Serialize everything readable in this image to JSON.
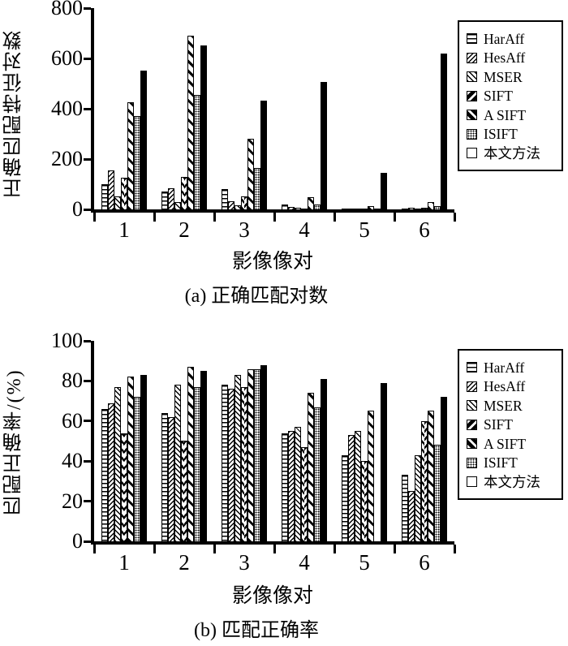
{
  "accent_color": "#000000",
  "background_color": "#ffffff",
  "chart_data": [
    {
      "type": "bar",
      "caption": "(a) 正确匹配对数",
      "ylabel": "正确匹配特征对数",
      "xlabel": "影像像对",
      "categories": [
        "1",
        "2",
        "3",
        "4",
        "5",
        "6"
      ],
      "ylim": [
        0,
        800
      ],
      "yticks": [
        0,
        200,
        400,
        600,
        800
      ],
      "grid": false,
      "legend_position": "right",
      "series": [
        {
          "name": "HarAff",
          "pattern": "horizontal-lines",
          "values": [
            100,
            70,
            80,
            20,
            4,
            4
          ]
        },
        {
          "name": "HesAff",
          "pattern": "dense-backslash",
          "values": [
            155,
            85,
            32,
            10,
            3,
            6
          ]
        },
        {
          "name": "MSER",
          "pattern": "slash",
          "values": [
            50,
            28,
            16,
            5,
            2,
            4
          ]
        },
        {
          "name": "SIFT",
          "pattern": "chevron",
          "values": [
            125,
            130,
            50,
            4,
            3,
            6
          ]
        },
        {
          "name": "A SIFT",
          "pattern": "bold-slash",
          "values": [
            425,
            690,
            280,
            48,
            12,
            30
          ]
        },
        {
          "name": "ISIFT",
          "pattern": "dots",
          "values": [
            372,
            455,
            165,
            18,
            3,
            12
          ]
        },
        {
          "name": "本文方法",
          "pattern": "solid-black",
          "values": [
            550,
            650,
            432,
            505,
            145,
            620
          ]
        }
      ]
    },
    {
      "type": "bar",
      "caption": "(b) 匹配正确率",
      "ylabel": "匹配正确率/(%)",
      "xlabel": "影像像对",
      "categories": [
        "1",
        "2",
        "3",
        "4",
        "5",
        "6"
      ],
      "ylim": [
        0,
        100
      ],
      "yticks": [
        0,
        20,
        40,
        60,
        80,
        100
      ],
      "grid": false,
      "legend_position": "right",
      "series": [
        {
          "name": "HarAff",
          "pattern": "horizontal-lines",
          "values": [
            66,
            64,
            78,
            54,
            43,
            33
          ]
        },
        {
          "name": "HesAff",
          "pattern": "dense-backslash",
          "values": [
            69,
            62,
            76,
            55,
            53,
            25
          ]
        },
        {
          "name": "MSER",
          "pattern": "slash",
          "values": [
            77,
            78,
            83,
            57,
            55,
            43
          ]
        },
        {
          "name": "SIFT",
          "pattern": "chevron",
          "values": [
            54,
            50,
            77,
            47,
            40,
            60
          ]
        },
        {
          "name": "A SIFT",
          "pattern": "bold-slash",
          "values": [
            82,
            87,
            86,
            74,
            65,
            65
          ]
        },
        {
          "name": "ISIFT",
          "pattern": "dots",
          "values": [
            72,
            77,
            86,
            67,
            0,
            48
          ]
        },
        {
          "name": "本文方法",
          "pattern": "solid-black",
          "values": [
            83,
            85,
            88,
            81,
            79,
            72
          ]
        }
      ]
    }
  ]
}
